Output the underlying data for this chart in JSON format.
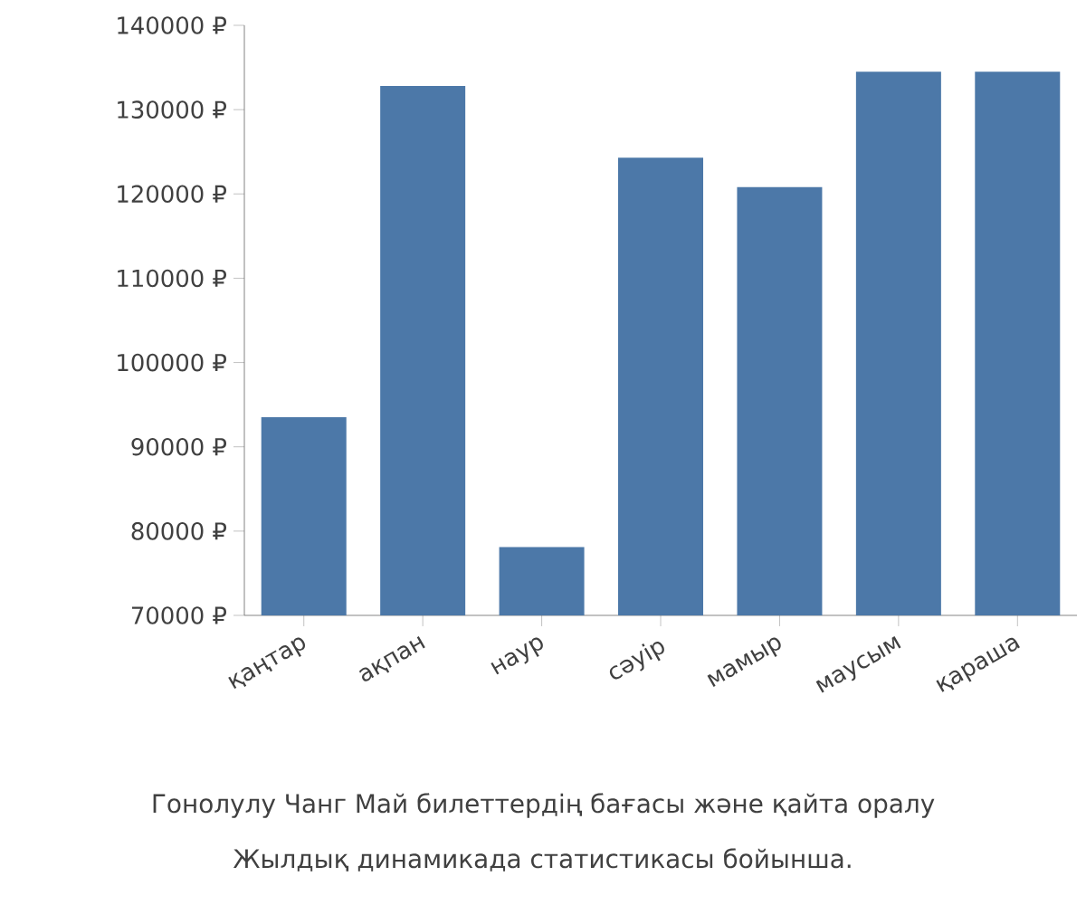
{
  "chart_data": {
    "type": "bar",
    "categories": [
      "қаңтар",
      "ақпан",
      "наур",
      "сәуір",
      "мамыр",
      "маусым",
      "қараша"
    ],
    "values": [
      93500,
      132800,
      78100,
      124300,
      120800,
      134500,
      134500
    ],
    "color": "#4c78a8",
    "ylim": [
      70000,
      140000
    ],
    "yticks": [
      {
        "value": 70000,
        "label": "70000 ₽"
      },
      {
        "value": 80000,
        "label": "80000 ₽"
      },
      {
        "value": 90000,
        "label": "90000 ₽"
      },
      {
        "value": 100000,
        "label": "100000 ₽"
      },
      {
        "value": 110000,
        "label": "110000 ₽"
      },
      {
        "value": 120000,
        "label": "120000 ₽"
      },
      {
        "value": 130000,
        "label": "130000 ₽"
      },
      {
        "value": 140000,
        "label": "140000 ₽"
      }
    ],
    "grid": false,
    "annotations": [
      "Гонолулу Чанг Май билеттердің бағасы және қайта оралу",
      "Жылдық динамикада статистикасы бойынша."
    ]
  }
}
